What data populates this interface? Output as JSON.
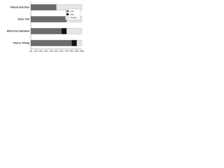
{
  "chart_data": {
    "type": "bar",
    "orientation": "horizontal",
    "stacked": true,
    "categories": [
      "Patient Selection",
      "Index Test",
      "Reference Standard",
      "Flow & Timing"
    ],
    "series": [
      {
        "name": "Low",
        "color": "#6b6b6b",
        "values": [
          50,
          70,
          60,
          80
        ]
      },
      {
        "name": "High",
        "color": "#111111",
        "values": [
          0,
          0,
          10,
          10
        ]
      },
      {
        "name": "Unclear",
        "color": "#e6e6e6",
        "values": [
          50,
          30,
          30,
          10
        ]
      }
    ],
    "xlim": [
      0,
      100
    ],
    "xticks": [
      {
        "value": 0,
        "label": "0%"
      },
      {
        "value": 10,
        "label": "10%"
      },
      {
        "value": 20,
        "label": "20%"
      },
      {
        "value": 30,
        "label": "30%"
      },
      {
        "value": 40,
        "label": "40%"
      },
      {
        "value": 50,
        "label": "50%"
      },
      {
        "value": 60,
        "label": "60%"
      },
      {
        "value": 70,
        "label": "70%"
      },
      {
        "value": 80,
        "label": "80%"
      },
      {
        "value": 90,
        "label": "90%"
      },
      {
        "value": 100,
        "label": "100%"
      }
    ],
    "legend": "upper-right"
  }
}
